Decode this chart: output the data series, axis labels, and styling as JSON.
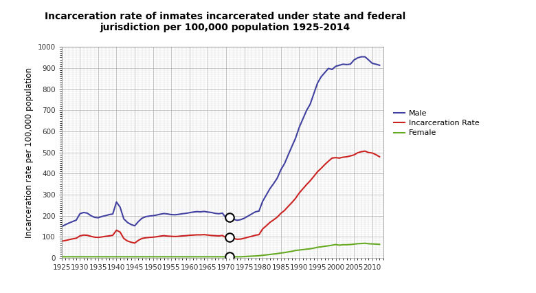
{
  "title": "Incarceration rate of inmates incarcerated under state and federal\njurisdiction per 100,000 population 1925-2014",
  "ylabel": "Incarceration rate per 100,000 population",
  "background_color": "#ffffff",
  "grid_color": "#cccccc",
  "xlim": [
    1925,
    2013
  ],
  "ylim": [
    0,
    1000
  ],
  "xticks": [
    1925,
    1930,
    1935,
    1940,
    1945,
    1950,
    1955,
    1960,
    1965,
    1970,
    1975,
    1980,
    1985,
    1990,
    1995,
    2000,
    2005,
    2010
  ],
  "yticks": [
    0,
    100,
    200,
    300,
    400,
    500,
    600,
    700,
    800,
    900,
    1000
  ],
  "male_color": "#4040a0",
  "incarceration_color": "#cc2222",
  "female_color": "#66aa22",
  "legend_entries": [
    "Male",
    "Incarceration Rate",
    "Female"
  ],
  "marker_year": 1971,
  "male_data": {
    "years": [
      1925,
      1926,
      1927,
      1928,
      1929,
      1930,
      1931,
      1932,
      1933,
      1934,
      1935,
      1936,
      1937,
      1938,
      1939,
      1940,
      1941,
      1942,
      1943,
      1944,
      1945,
      1946,
      1947,
      1948,
      1949,
      1950,
      1951,
      1952,
      1953,
      1954,
      1955,
      1956,
      1957,
      1958,
      1959,
      1960,
      1961,
      1962,
      1963,
      1964,
      1965,
      1966,
      1967,
      1968,
      1969,
      1970,
      1971,
      1972,
      1973,
      1974,
      1975,
      1976,
      1977,
      1978,
      1979,
      1980,
      1981,
      1982,
      1983,
      1984,
      1985,
      1986,
      1987,
      1988,
      1989,
      1990,
      1991,
      1992,
      1993,
      1994,
      1995,
      1996,
      1997,
      1998,
      1999,
      2000,
      2001,
      2002,
      2003,
      2004,
      2005,
      2006,
      2007,
      2008,
      2009,
      2010,
      2011,
      2012
    ],
    "values": [
      148,
      157,
      165,
      172,
      179,
      209,
      215,
      212,
      200,
      192,
      190,
      196,
      200,
      205,
      208,
      265,
      240,
      185,
      168,
      158,
      152,
      172,
      188,
      195,
      198,
      200,
      203,
      207,
      210,
      208,
      205,
      204,
      206,
      209,
      211,
      214,
      217,
      219,
      218,
      220,
      217,
      215,
      211,
      209,
      212,
      188,
      192,
      183,
      178,
      181,
      188,
      198,
      208,
      218,
      222,
      268,
      298,
      328,
      352,
      378,
      418,
      447,
      488,
      528,
      567,
      618,
      658,
      698,
      728,
      778,
      828,
      858,
      878,
      898,
      893,
      908,
      913,
      918,
      916,
      918,
      938,
      948,
      953,
      953,
      938,
      922,
      918,
      913
    ]
  },
  "incarceration_data": {
    "years": [
      1925,
      1926,
      1927,
      1928,
      1929,
      1930,
      1931,
      1932,
      1933,
      1934,
      1935,
      1936,
      1937,
      1938,
      1939,
      1940,
      1941,
      1942,
      1943,
      1944,
      1945,
      1946,
      1947,
      1948,
      1949,
      1950,
      1951,
      1952,
      1953,
      1954,
      1955,
      1956,
      1957,
      1958,
      1959,
      1960,
      1961,
      1962,
      1963,
      1964,
      1965,
      1966,
      1967,
      1968,
      1969,
      1970,
      1971,
      1972,
      1973,
      1974,
      1975,
      1976,
      1977,
      1978,
      1979,
      1980,
      1981,
      1982,
      1983,
      1984,
      1985,
      1986,
      1987,
      1988,
      1989,
      1990,
      1991,
      1992,
      1993,
      1994,
      1995,
      1996,
      1997,
      1998,
      1999,
      2000,
      2001,
      2002,
      2003,
      2004,
      2005,
      2006,
      2007,
      2008,
      2009,
      2010,
      2011,
      2012
    ],
    "values": [
      79,
      82,
      86,
      90,
      93,
      104,
      108,
      107,
      102,
      98,
      97,
      99,
      102,
      104,
      107,
      131,
      122,
      92,
      80,
      74,
      70,
      83,
      92,
      95,
      97,
      98,
      100,
      103,
      105,
      103,
      102,
      101,
      102,
      104,
      105,
      107,
      108,
      109,
      109,
      110,
      108,
      106,
      105,
      104,
      106,
      96,
      96,
      92,
      88,
      89,
      93,
      98,
      102,
      107,
      110,
      137,
      152,
      168,
      180,
      193,
      211,
      225,
      244,
      262,
      282,
      307,
      327,
      347,
      365,
      386,
      408,
      424,
      442,
      458,
      473,
      475,
      473,
      477,
      479,
      483,
      488,
      498,
      503,
      506,
      499,
      497,
      489,
      479
    ]
  },
  "female_data": {
    "years": [
      1925,
      1926,
      1927,
      1928,
      1929,
      1930,
      1931,
      1932,
      1933,
      1934,
      1935,
      1936,
      1937,
      1938,
      1939,
      1940,
      1941,
      1942,
      1943,
      1944,
      1945,
      1946,
      1947,
      1948,
      1949,
      1950,
      1951,
      1952,
      1953,
      1954,
      1955,
      1956,
      1957,
      1958,
      1959,
      1960,
      1961,
      1962,
      1963,
      1964,
      1965,
      1966,
      1967,
      1968,
      1969,
      1970,
      1971,
      1972,
      1973,
      1974,
      1975,
      1976,
      1977,
      1978,
      1979,
      1980,
      1981,
      1982,
      1983,
      1984,
      1985,
      1986,
      1987,
      1988,
      1989,
      1990,
      1991,
      1992,
      1993,
      1994,
      1995,
      1996,
      1997,
      1998,
      1999,
      2000,
      2001,
      2002,
      2003,
      2004,
      2005,
      2006,
      2007,
      2008,
      2009,
      2010,
      2011,
      2012
    ],
    "values": [
      5,
      5,
      5,
      5,
      5,
      5,
      5,
      5,
      5,
      5,
      5,
      5,
      5,
      5,
      5,
      5,
      5,
      5,
      5,
      5,
      5,
      5,
      5,
      5,
      5,
      5,
      5,
      5,
      5,
      5,
      5,
      5,
      5,
      5,
      5,
      5,
      5,
      5,
      5,
      5,
      5,
      5,
      5,
      5,
      5,
      5,
      5,
      5,
      5,
      5,
      6,
      7,
      8,
      9,
      10,
      12,
      14,
      16,
      18,
      20,
      23,
      25,
      28,
      31,
      35,
      37,
      39,
      41,
      43,
      46,
      50,
      52,
      55,
      57,
      60,
      63,
      60,
      62,
      62,
      63,
      65,
      67,
      68,
      69,
      67,
      66,
      65,
      64
    ]
  }
}
